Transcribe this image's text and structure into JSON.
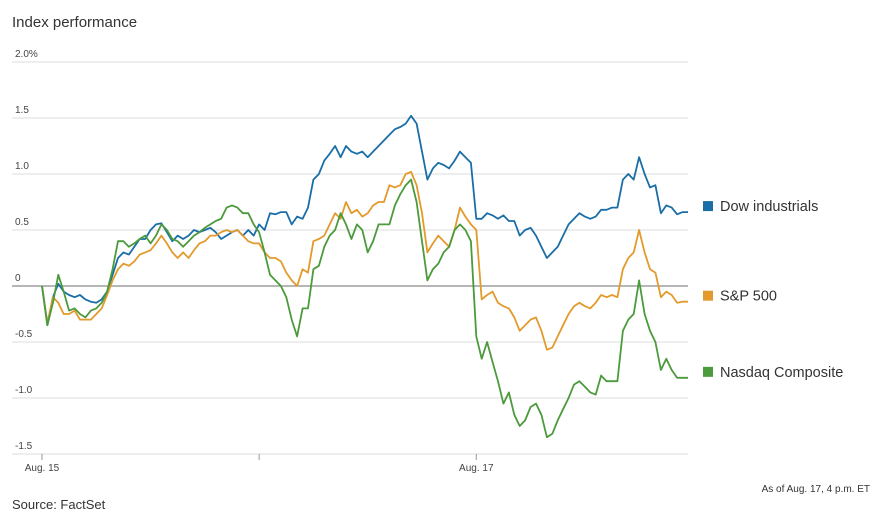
{
  "chart_data": {
    "type": "line",
    "title": "Index performance",
    "source": "Source: FactSet",
    "note": "As of Aug. 17, 4 p.m. ET",
    "x": [
      0,
      1,
      2,
      3,
      4,
      5,
      6,
      7,
      8,
      9,
      10,
      11,
      12,
      13,
      14,
      15,
      16,
      17,
      18,
      19,
      20,
      21,
      22,
      23,
      24,
      25,
      26,
      27,
      28,
      29,
      30,
      31,
      32,
      33,
      34,
      35,
      36,
      37,
      38,
      39,
      40,
      41,
      42,
      43,
      44,
      45,
      46,
      47,
      48,
      49,
      50,
      51,
      52,
      53,
      54,
      55,
      56,
      57,
      58,
      59,
      60,
      61,
      62,
      63,
      64,
      65,
      66,
      67,
      68,
      69,
      70,
      71,
      72,
      73,
      74,
      75,
      76,
      77,
      78,
      79,
      80,
      81,
      82,
      83,
      84,
      85,
      86,
      87,
      88,
      89,
      90,
      91,
      92,
      93,
      94,
      95,
      96,
      97,
      98,
      99,
      100,
      101,
      102,
      103,
      104,
      105,
      106,
      107,
      108,
      109,
      110,
      111,
      112,
      113,
      114,
      115,
      116,
      117,
      118,
      119
    ],
    "xlim": [
      0,
      119
    ],
    "xticks": [
      {
        "value": 0,
        "label": "Aug. 15"
      },
      {
        "value": 80,
        "label": "Aug. 17"
      }
    ],
    "xminor_ticks": [
      40
    ],
    "ylim": [
      -1.5,
      2
    ],
    "yticks": [
      {
        "value": 2,
        "label": "2.0%"
      },
      1.5,
      {
        "value": 1,
        "label": "1.0"
      },
      0.5,
      0,
      -0.5,
      {
        "value": -1,
        "label": "-1.0"
      },
      -1.5
    ],
    "grid": true,
    "series": [
      {
        "name": "Dow industrials",
        "color": "#1a6ea8",
        "values": [
          0,
          -0.35,
          -0.1,
          0.02,
          -0.05,
          -0.08,
          -0.1,
          -0.08,
          -0.12,
          -0.14,
          -0.15,
          -0.12,
          -0.05,
          0.1,
          0.25,
          0.3,
          0.28,
          0.35,
          0.42,
          0.42,
          0.5,
          0.55,
          0.56,
          0.48,
          0.4,
          0.45,
          0.42,
          0.45,
          0.5,
          0.48,
          0.5,
          0.52,
          0.48,
          0.42,
          0.45,
          0.48,
          0.5,
          0.45,
          0.5,
          0.45,
          0.55,
          0.5,
          0.65,
          0.64,
          0.66,
          0.66,
          0.55,
          0.62,
          0.6,
          0.7,
          0.95,
          1.0,
          1.12,
          1.18,
          1.25,
          1.15,
          1.25,
          1.2,
          1.18,
          1.2,
          1.15,
          1.2,
          1.25,
          1.3,
          1.35,
          1.4,
          1.42,
          1.45,
          1.52,
          1.45,
          1.2,
          0.95,
          1.05,
          1.1,
          1.08,
          1.05,
          1.12,
          1.2,
          1.15,
          1.1,
          0.6,
          0.6,
          0.65,
          0.63,
          0.6,
          0.63,
          0.58,
          0.58,
          0.45,
          0.5,
          0.52,
          0.45,
          0.35,
          0.25,
          0.3,
          0.35,
          0.45,
          0.55,
          0.6,
          0.65,
          0.62,
          0.6,
          0.62,
          0.68,
          0.68,
          0.7,
          0.7,
          0.95,
          1.0,
          0.95,
          1.15,
          1.0,
          0.88,
          0.9,
          0.65,
          0.72,
          0.7,
          0.64,
          0.66,
          0.66
        ]
      },
      {
        "name": "S&P 500",
        "color": "#e39a2c",
        "values": [
          0,
          -0.33,
          -0.1,
          -0.15,
          -0.25,
          -0.25,
          -0.22,
          -0.3,
          -0.3,
          -0.3,
          -0.25,
          -0.2,
          -0.08,
          0.05,
          0.15,
          0.2,
          0.18,
          0.22,
          0.28,
          0.3,
          0.32,
          0.38,
          0.45,
          0.38,
          0.3,
          0.25,
          0.3,
          0.25,
          0.32,
          0.38,
          0.4,
          0.45,
          0.45,
          0.48,
          0.5,
          0.48,
          0.5,
          0.45,
          0.4,
          0.38,
          0.38,
          0.3,
          0.25,
          0.25,
          0.22,
          0.12,
          0.05,
          0.0,
          0.15,
          0.12,
          0.4,
          0.42,
          0.45,
          0.55,
          0.65,
          0.6,
          0.75,
          0.65,
          0.68,
          0.62,
          0.65,
          0.72,
          0.75,
          0.75,
          0.9,
          0.88,
          0.9,
          1.0,
          1.02,
          0.9,
          0.65,
          0.3,
          0.38,
          0.45,
          0.4,
          0.35,
          0.5,
          0.7,
          0.62,
          0.55,
          0.5,
          -0.12,
          -0.08,
          -0.05,
          -0.15,
          -0.18,
          -0.2,
          -0.28,
          -0.4,
          -0.35,
          -0.3,
          -0.28,
          -0.4,
          -0.57,
          -0.55,
          -0.45,
          -0.35,
          -0.25,
          -0.18,
          -0.15,
          -0.18,
          -0.2,
          -0.15,
          -0.08,
          -0.1,
          -0.08,
          -0.1,
          0.15,
          0.25,
          0.3,
          0.5,
          0.3,
          0.15,
          0.12,
          -0.1,
          -0.05,
          -0.08,
          -0.15,
          -0.14,
          -0.14
        ]
      },
      {
        "name": "Nasdaq Composite",
        "color": "#4b9a3b",
        "values": [
          0,
          -0.35,
          -0.15,
          0.1,
          -0.05,
          -0.22,
          -0.2,
          -0.25,
          -0.28,
          -0.22,
          -0.2,
          -0.15,
          -0.05,
          0.15,
          0.4,
          0.4,
          0.35,
          0.38,
          0.42,
          0.45,
          0.38,
          0.45,
          0.55,
          0.5,
          0.42,
          0.4,
          0.35,
          0.4,
          0.45,
          0.48,
          0.52,
          0.55,
          0.58,
          0.6,
          0.7,
          0.72,
          0.7,
          0.65,
          0.65,
          0.55,
          0.48,
          0.3,
          0.1,
          0.05,
          0.0,
          -0.1,
          -0.3,
          -0.45,
          -0.2,
          -0.2,
          0.15,
          0.18,
          0.35,
          0.45,
          0.5,
          0.65,
          0.55,
          0.42,
          0.55,
          0.5,
          0.3,
          0.4,
          0.55,
          0.55,
          0.55,
          0.72,
          0.82,
          0.9,
          0.95,
          0.75,
          0.4,
          0.05,
          0.15,
          0.2,
          0.3,
          0.35,
          0.5,
          0.55,
          0.5,
          0.4,
          -0.45,
          -0.65,
          -0.5,
          -0.68,
          -0.85,
          -1.05,
          -0.95,
          -1.15,
          -1.25,
          -1.2,
          -1.08,
          -1.05,
          -1.15,
          -1.35,
          -1.32,
          -1.2,
          -1.1,
          -1.0,
          -0.88,
          -0.85,
          -0.9,
          -0.95,
          -0.97,
          -0.8,
          -0.85,
          -0.85,
          -0.85,
          -0.4,
          -0.3,
          -0.25,
          0.05,
          -0.25,
          -0.4,
          -0.5,
          -0.75,
          -0.65,
          -0.75,
          -0.82,
          -0.82,
          -0.82
        ]
      }
    ]
  }
}
